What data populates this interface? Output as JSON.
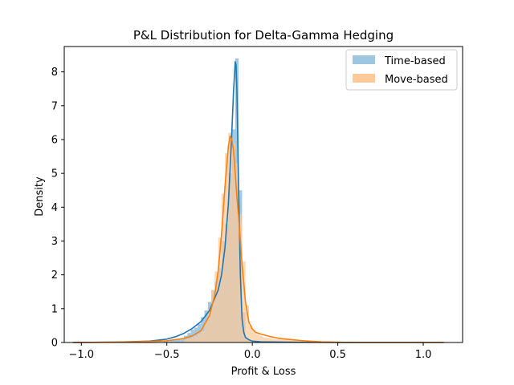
{
  "chart_data": {
    "type": "histogram-kde",
    "title": "P&L Distribution for Delta-Gamma Hedging",
    "xlabel": "Profit & Loss",
    "ylabel": "Density",
    "xlim": [
      -1.1,
      1.23
    ],
    "ylim": [
      0,
      8.75
    ],
    "xticks": [
      -1.0,
      -0.5,
      0.0,
      0.5,
      1.0
    ],
    "xtick_labels": [
      "−1.0",
      "−0.5",
      "0.0",
      "0.5",
      "1.0"
    ],
    "yticks": [
      0,
      1,
      2,
      3,
      4,
      5,
      6,
      7,
      8
    ],
    "ytick_labels": [
      "0",
      "1",
      "2",
      "3",
      "4",
      "5",
      "6",
      "7",
      "8"
    ],
    "grid": false,
    "legend_position": "top-right",
    "bin_width": 0.02,
    "series": [
      {
        "name": "Time-based",
        "bar_color": "#9dc6e1",
        "line_color": "#1f77b4",
        "histogram": {
          "bin_start": [
            -0.52,
            -0.5,
            -0.48,
            -0.46,
            -0.44,
            -0.42,
            -0.4,
            -0.38,
            -0.36,
            -0.34,
            -0.32,
            -0.3,
            -0.28,
            -0.26,
            -0.24,
            -0.22,
            -0.2,
            -0.18,
            -0.16,
            -0.14,
            -0.12,
            -0.1,
            -0.08,
            -0.06,
            -0.04,
            -0.02,
            0.0
          ],
          "density": [
            0.03,
            0.04,
            0.06,
            0.08,
            0.1,
            0.13,
            0.2,
            0.28,
            0.38,
            0.44,
            0.55,
            0.75,
            0.95,
            1.2,
            1.55,
            1.8,
            2.2,
            3.0,
            3.5,
            5.0,
            6.3,
            8.4,
            4.5,
            0.9,
            0.12,
            0.03,
            0.01
          ]
        },
        "kde": {
          "x": [
            -1.05,
            -0.8,
            -0.6,
            -0.5,
            -0.45,
            -0.4,
            -0.35,
            -0.3,
            -0.25,
            -0.2,
            -0.18,
            -0.16,
            -0.14,
            -0.12,
            -0.11,
            -0.1,
            -0.095,
            -0.09,
            -0.085,
            -0.08,
            -0.07,
            -0.06,
            -0.05,
            -0.04,
            -0.02,
            0.0,
            0.05,
            0.2,
            0.5,
            1.0,
            1.12
          ],
          "y": [
            0.0,
            0.01,
            0.04,
            0.1,
            0.17,
            0.27,
            0.42,
            0.62,
            0.95,
            1.55,
            2.0,
            2.8,
            4.1,
            6.2,
            7.4,
            8.3,
            8.2,
            7.4,
            6.0,
            4.5,
            2.0,
            0.7,
            0.3,
            0.15,
            0.08,
            0.04,
            0.02,
            0.01,
            0.0,
            0.0,
            0.0
          ]
        }
      },
      {
        "name": "Move-based",
        "bar_color": "#ffc999",
        "line_color": "#ff7f0e",
        "histogram": {
          "bin_start": [
            -0.4,
            -0.38,
            -0.36,
            -0.34,
            -0.32,
            -0.3,
            -0.28,
            -0.26,
            -0.24,
            -0.22,
            -0.2,
            -0.18,
            -0.16,
            -0.14,
            -0.12,
            -0.1,
            -0.08,
            -0.06,
            -0.04,
            -0.02,
            0.0,
            0.02,
            0.04,
            0.06,
            0.08,
            0.1,
            0.12,
            0.14,
            0.16,
            0.18,
            0.2,
            0.22,
            0.24,
            0.26,
            0.28,
            0.3,
            0.32,
            0.34
          ],
          "density": [
            0.1,
            0.12,
            0.15,
            0.2,
            0.26,
            0.35,
            0.6,
            1.0,
            1.55,
            2.1,
            3.1,
            4.4,
            5.6,
            6.2,
            5.9,
            5.3,
            3.8,
            2.4,
            1.1,
            0.5,
            0.35,
            0.25,
            0.2,
            0.15,
            0.14,
            0.12,
            0.1,
            0.1,
            0.09,
            0.09,
            0.1,
            0.08,
            0.07,
            0.05,
            0.05,
            0.04,
            0.03,
            0.02
          ]
        },
        "kde": {
          "x": [
            -1.05,
            -0.8,
            -0.6,
            -0.5,
            -0.4,
            -0.35,
            -0.3,
            -0.25,
            -0.22,
            -0.2,
            -0.18,
            -0.16,
            -0.14,
            -0.13,
            -0.12,
            -0.11,
            -0.1,
            -0.09,
            -0.08,
            -0.06,
            -0.04,
            -0.02,
            0.0,
            0.02,
            0.05,
            0.1,
            0.15,
            0.2,
            0.3,
            0.4,
            0.6,
            1.0,
            1.12
          ],
          "y": [
            0.0,
            0.01,
            0.03,
            0.05,
            0.12,
            0.2,
            0.35,
            0.8,
            1.4,
            2.1,
            3.2,
            4.6,
            5.8,
            6.1,
            6.0,
            5.7,
            5.0,
            4.3,
            3.7,
            2.3,
            1.2,
            0.6,
            0.4,
            0.3,
            0.25,
            0.18,
            0.13,
            0.1,
            0.05,
            0.02,
            0.0,
            0.0,
            0.0
          ]
        }
      }
    ]
  }
}
